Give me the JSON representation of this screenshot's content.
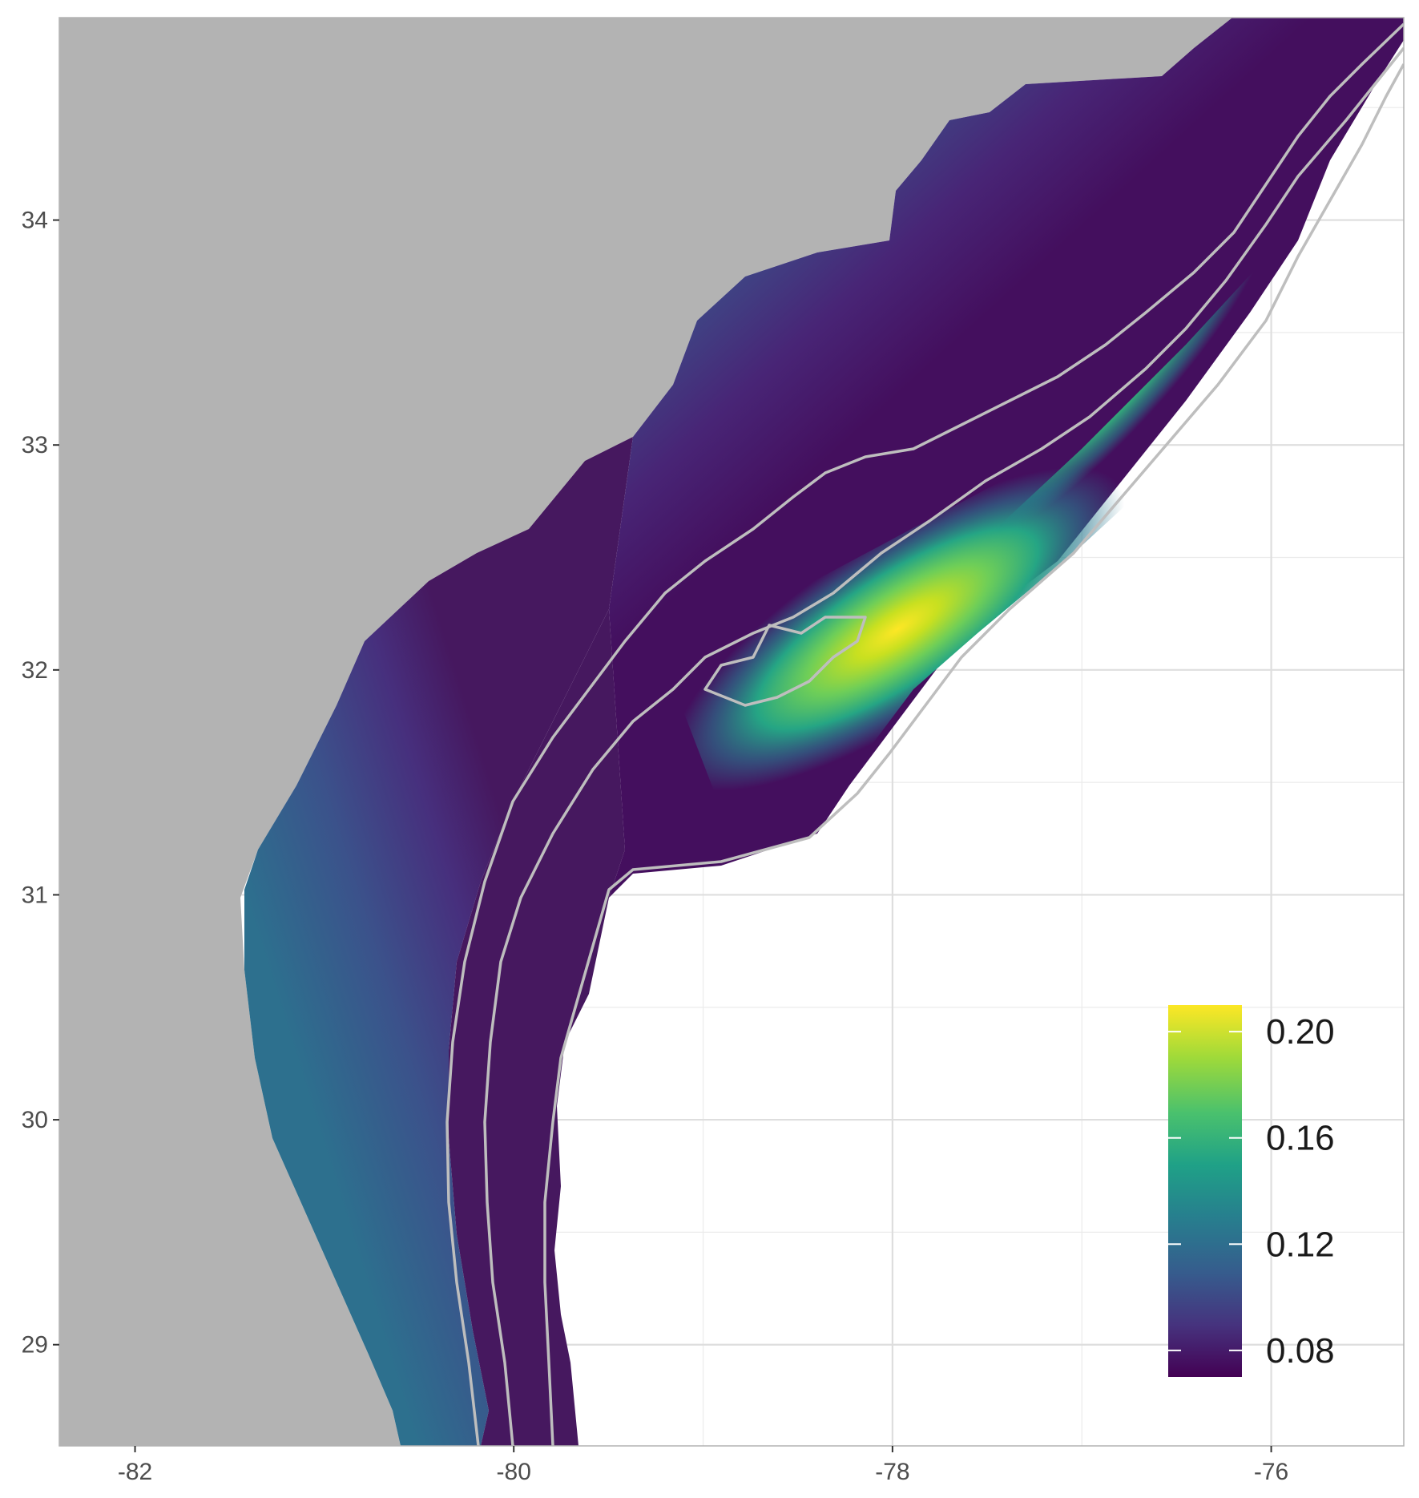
{
  "chart_data": {
    "type": "heatmap",
    "title": "",
    "xlabel": "",
    "ylabel": "",
    "xlim": [
      -82.4,
      -75.3
    ],
    "ylim": [
      28.55,
      34.9
    ],
    "x_ticks": [
      {
        "value": -82,
        "label": "-82"
      },
      {
        "value": -80,
        "label": "-80"
      },
      {
        "value": -78,
        "label": "-78"
      },
      {
        "value": -76,
        "label": "-76"
      }
    ],
    "y_ticks": [
      {
        "value": 29,
        "label": "29"
      },
      {
        "value": 30,
        "label": "30"
      },
      {
        "value": 31,
        "label": "31"
      },
      {
        "value": 32,
        "label": "32"
      },
      {
        "value": 33,
        "label": "33"
      },
      {
        "value": 34,
        "label": "34"
      }
    ],
    "grid": true,
    "land_color": "#b3b3b3",
    "contour_color": "#bebebe",
    "colormap": "viridis",
    "hotspot": {
      "lon": -78.0,
      "lat": 32.2,
      "value": 0.21
    },
    "legend": {
      "placement": "bottom-right",
      "range": [
        0.07,
        0.21
      ],
      "ticks": [
        {
          "value": 0.08,
          "label": "0.08"
        },
        {
          "value": 0.12,
          "label": "0.12"
        },
        {
          "value": 0.16,
          "label": "0.16"
        },
        {
          "value": 0.2,
          "label": "0.20"
        }
      ]
    }
  }
}
